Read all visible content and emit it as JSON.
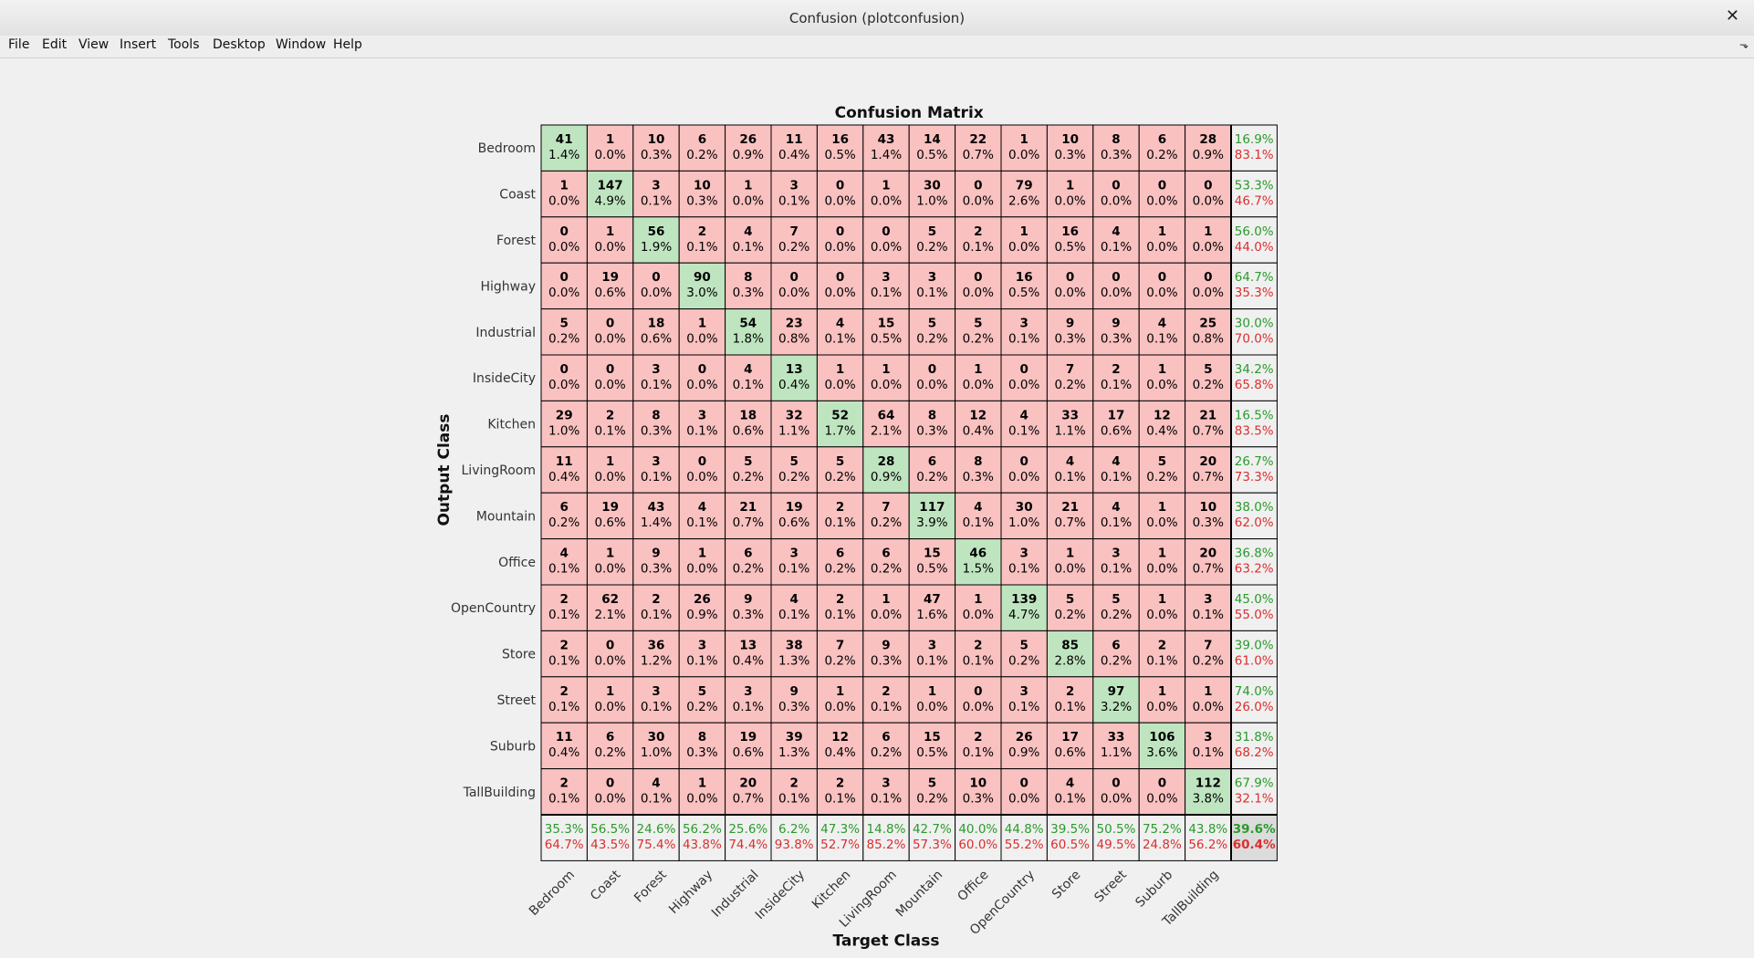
{
  "window": {
    "title": "Confusion (plotconfusion)",
    "close_glyph": "✕",
    "dock_glyph": "⬎"
  },
  "menu": [
    {
      "label": "File"
    },
    {
      "label": "Edit"
    },
    {
      "label": "View"
    },
    {
      "label": "Insert"
    },
    {
      "label": "Tools"
    },
    {
      "label": "Desktop"
    },
    {
      "label": "Window"
    },
    {
      "label": "Help"
    }
  ],
  "colors": {
    "diag": "#bfe5c0",
    "offdiag": "#f9c1c0",
    "summary": "#f0f0f0",
    "overall": "#dcdcdc",
    "good": "#2a9a2a",
    "bad": "#dc2e2e"
  },
  "chart_data": {
    "type": "heatmap",
    "title": "Confusion Matrix",
    "xlabel": "Target Class",
    "ylabel": "Output Class",
    "classes": [
      "Bedroom",
      "Coast",
      "Forest",
      "Highway",
      "Industrial",
      "InsideCity",
      "Kitchen",
      "LivingRoom",
      "Mountain",
      "Office",
      "OpenCountry",
      "Store",
      "Street",
      "Suburb",
      "TallBuilding"
    ],
    "counts": [
      [
        41,
        1,
        10,
        6,
        26,
        11,
        16,
        43,
        14,
        22,
        1,
        10,
        8,
        6,
        28
      ],
      [
        1,
        147,
        3,
        10,
        1,
        3,
        0,
        1,
        30,
        0,
        79,
        1,
        0,
        0,
        0
      ],
      [
        0,
        1,
        56,
        2,
        4,
        7,
        0,
        0,
        5,
        2,
        1,
        16,
        4,
        1,
        1
      ],
      [
        0,
        19,
        0,
        90,
        8,
        0,
        0,
        3,
        3,
        0,
        16,
        0,
        0,
        0,
        0
      ],
      [
        5,
        0,
        18,
        1,
        54,
        23,
        4,
        15,
        5,
        5,
        3,
        9,
        9,
        4,
        25
      ],
      [
        0,
        0,
        3,
        0,
        4,
        13,
        1,
        1,
        0,
        1,
        0,
        7,
        2,
        1,
        5
      ],
      [
        29,
        2,
        8,
        3,
        18,
        32,
        52,
        64,
        8,
        12,
        4,
        33,
        17,
        12,
        21
      ],
      [
        11,
        1,
        3,
        0,
        5,
        5,
        5,
        28,
        6,
        8,
        0,
        4,
        4,
        5,
        20
      ],
      [
        6,
        19,
        43,
        4,
        21,
        19,
        2,
        7,
        117,
        4,
        30,
        21,
        4,
        1,
        10
      ],
      [
        4,
        1,
        9,
        1,
        6,
        3,
        6,
        6,
        15,
        46,
        3,
        1,
        3,
        1,
        20
      ],
      [
        2,
        62,
        2,
        26,
        9,
        4,
        2,
        1,
        47,
        1,
        139,
        5,
        5,
        1,
        3
      ],
      [
        2,
        0,
        36,
        3,
        13,
        38,
        7,
        9,
        3,
        2,
        5,
        85,
        6,
        2,
        7
      ],
      [
        2,
        1,
        3,
        5,
        3,
        9,
        1,
        2,
        1,
        0,
        3,
        2,
        97,
        1,
        1
      ],
      [
        11,
        6,
        30,
        8,
        19,
        39,
        12,
        6,
        15,
        2,
        26,
        17,
        33,
        106,
        3
      ],
      [
        2,
        0,
        4,
        1,
        20,
        2,
        2,
        3,
        5,
        10,
        0,
        4,
        0,
        0,
        112
      ]
    ],
    "percents": [
      [
        "1.4%",
        "0.0%",
        "0.3%",
        "0.2%",
        "0.9%",
        "0.4%",
        "0.5%",
        "1.4%",
        "0.5%",
        "0.7%",
        "0.0%",
        "0.3%",
        "0.3%",
        "0.2%",
        "0.9%"
      ],
      [
        "0.0%",
        "4.9%",
        "0.1%",
        "0.3%",
        "0.0%",
        "0.1%",
        "0.0%",
        "0.0%",
        "1.0%",
        "0.0%",
        "2.6%",
        "0.0%",
        "0.0%",
        "0.0%",
        "0.0%"
      ],
      [
        "0.0%",
        "0.0%",
        "1.9%",
        "0.1%",
        "0.1%",
        "0.2%",
        "0.0%",
        "0.0%",
        "0.2%",
        "0.1%",
        "0.0%",
        "0.5%",
        "0.1%",
        "0.0%",
        "0.0%"
      ],
      [
        "0.0%",
        "0.6%",
        "0.0%",
        "3.0%",
        "0.3%",
        "0.0%",
        "0.0%",
        "0.1%",
        "0.1%",
        "0.0%",
        "0.5%",
        "0.0%",
        "0.0%",
        "0.0%",
        "0.0%"
      ],
      [
        "0.2%",
        "0.0%",
        "0.6%",
        "0.0%",
        "1.8%",
        "0.8%",
        "0.1%",
        "0.5%",
        "0.2%",
        "0.2%",
        "0.1%",
        "0.3%",
        "0.3%",
        "0.1%",
        "0.8%"
      ],
      [
        "0.0%",
        "0.0%",
        "0.1%",
        "0.0%",
        "0.1%",
        "0.4%",
        "0.0%",
        "0.0%",
        "0.0%",
        "0.0%",
        "0.0%",
        "0.2%",
        "0.1%",
        "0.0%",
        "0.2%"
      ],
      [
        "1.0%",
        "0.1%",
        "0.3%",
        "0.1%",
        "0.6%",
        "1.1%",
        "1.7%",
        "2.1%",
        "0.3%",
        "0.4%",
        "0.1%",
        "1.1%",
        "0.6%",
        "0.4%",
        "0.7%"
      ],
      [
        "0.4%",
        "0.0%",
        "0.1%",
        "0.0%",
        "0.2%",
        "0.2%",
        "0.2%",
        "0.9%",
        "0.2%",
        "0.3%",
        "0.0%",
        "0.1%",
        "0.1%",
        "0.2%",
        "0.7%"
      ],
      [
        "0.2%",
        "0.6%",
        "1.4%",
        "0.1%",
        "0.7%",
        "0.6%",
        "0.1%",
        "0.2%",
        "3.9%",
        "0.1%",
        "1.0%",
        "0.7%",
        "0.1%",
        "0.0%",
        "0.3%"
      ],
      [
        "0.1%",
        "0.0%",
        "0.3%",
        "0.0%",
        "0.2%",
        "0.1%",
        "0.2%",
        "0.2%",
        "0.5%",
        "1.5%",
        "0.1%",
        "0.0%",
        "0.1%",
        "0.0%",
        "0.7%"
      ],
      [
        "0.1%",
        "2.1%",
        "0.1%",
        "0.9%",
        "0.3%",
        "0.1%",
        "0.1%",
        "0.0%",
        "1.6%",
        "0.0%",
        "4.7%",
        "0.2%",
        "0.2%",
        "0.0%",
        "0.1%"
      ],
      [
        "0.1%",
        "0.0%",
        "1.2%",
        "0.1%",
        "0.4%",
        "1.3%",
        "0.2%",
        "0.3%",
        "0.1%",
        "0.1%",
        "0.2%",
        "2.8%",
        "0.2%",
        "0.1%",
        "0.2%"
      ],
      [
        "0.1%",
        "0.0%",
        "0.1%",
        "0.2%",
        "0.1%",
        "0.3%",
        "0.0%",
        "0.1%",
        "0.0%",
        "0.0%",
        "0.1%",
        "0.1%",
        "3.2%",
        "0.0%",
        "0.0%"
      ],
      [
        "0.4%",
        "0.2%",
        "1.0%",
        "0.3%",
        "0.6%",
        "1.3%",
        "0.4%",
        "0.2%",
        "0.5%",
        "0.1%",
        "0.9%",
        "0.6%",
        "1.1%",
        "3.6%",
        "0.1%"
      ],
      [
        "0.1%",
        "0.0%",
        "0.1%",
        "0.0%",
        "0.7%",
        "0.1%",
        "0.1%",
        "0.1%",
        "0.2%",
        "0.3%",
        "0.0%",
        "0.1%",
        "0.0%",
        "0.0%",
        "3.8%"
      ]
    ],
    "row_summary": [
      [
        "16.9%",
        "83.1%"
      ],
      [
        "53.3%",
        "46.7%"
      ],
      [
        "56.0%",
        "44.0%"
      ],
      [
        "64.7%",
        "35.3%"
      ],
      [
        "30.0%",
        "70.0%"
      ],
      [
        "34.2%",
        "65.8%"
      ],
      [
        "16.5%",
        "83.5%"
      ],
      [
        "26.7%",
        "73.3%"
      ],
      [
        "38.0%",
        "62.0%"
      ],
      [
        "36.8%",
        "63.2%"
      ],
      [
        "45.0%",
        "55.0%"
      ],
      [
        "39.0%",
        "61.0%"
      ],
      [
        "74.0%",
        "26.0%"
      ],
      [
        "31.8%",
        "68.2%"
      ],
      [
        "67.9%",
        "32.1%"
      ]
    ],
    "col_summary": [
      [
        "35.3%",
        "64.7%"
      ],
      [
        "56.5%",
        "43.5%"
      ],
      [
        "24.6%",
        "75.4%"
      ],
      [
        "56.2%",
        "43.8%"
      ],
      [
        "25.6%",
        "74.4%"
      ],
      [
        "6.2%",
        "93.8%"
      ],
      [
        "47.3%",
        "52.7%"
      ],
      [
        "14.8%",
        "85.2%"
      ],
      [
        "42.7%",
        "57.3%"
      ],
      [
        "40.0%",
        "60.0%"
      ],
      [
        "44.8%",
        "55.2%"
      ],
      [
        "39.5%",
        "60.5%"
      ],
      [
        "50.5%",
        "49.5%"
      ],
      [
        "75.2%",
        "24.8%"
      ],
      [
        "43.8%",
        "56.2%"
      ]
    ],
    "overall": [
      "39.6%",
      "60.4%"
    ]
  }
}
